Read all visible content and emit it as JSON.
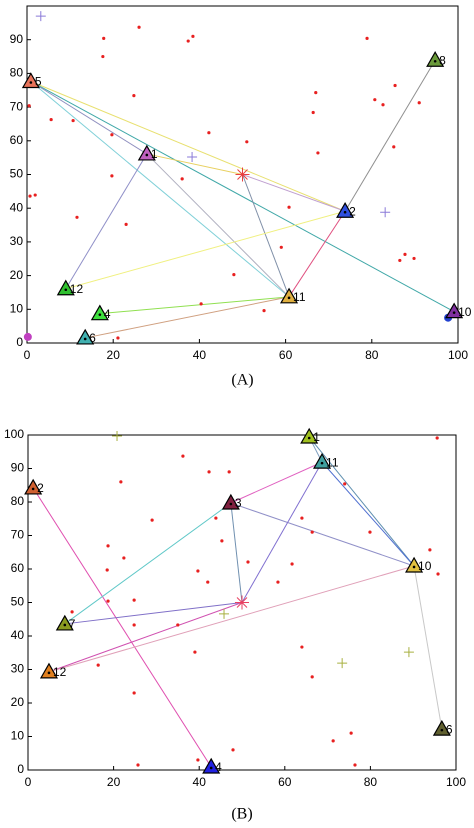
{
  "chart_data": [
    {
      "type": "scatter",
      "label": "(A)",
      "xlim": [
        0,
        100
      ],
      "ylim": [
        0,
        100
      ],
      "xticks": [
        0,
        20,
        40,
        60,
        80,
        100
      ],
      "yticks": [
        0,
        10,
        20,
        30,
        40,
        50,
        60,
        70,
        80,
        90
      ],
      "series": [
        {
          "marker": "dot",
          "color": "#e82020",
          "x": [
            17.8,
            26,
            37.4,
            38.5,
            17.6,
            78.9,
            24.8,
            5.6,
            10.7,
            19.7,
            42.2,
            51,
            67,
            66.4,
            80.7,
            82.6,
            91,
            85.4,
            85.1,
            67.5,
            19.7,
            36,
            0.7,
            1.9,
            60.8,
            11.6,
            23,
            59,
            48,
            87.7,
            89.8,
            86.5,
            0.5,
            40.4,
            55,
            21.1
          ],
          "y": [
            90.4,
            93.7,
            89.6,
            91,
            85,
            90.4,
            73.4,
            66.3,
            66,
            61.8,
            62.4,
            59.7,
            74.3,
            68.4,
            72.2,
            70.7,
            71.3,
            76.4,
            58.2,
            56.4,
            49.6,
            48.7,
            43.6,
            43.9,
            40.3,
            37.3,
            35.2,
            28.4,
            20.3,
            26.3,
            25.1,
            24.5,
            70.4,
            11.6,
            9.6,
            1.5
          ]
        },
        {
          "marker": "plus",
          "color": "#8a7ad8",
          "x": [
            3.2,
            38.3,
            83.1
          ],
          "y": [
            97,
            55.2,
            38.8
          ]
        },
        {
          "marker": "star",
          "color": "#e84040",
          "x": [
            50
          ],
          "y": [
            50
          ]
        },
        {
          "marker": "circle",
          "color": "#c040c0",
          "x": [
            0.2
          ],
          "y": [
            1.8
          ]
        },
        {
          "marker": "circle",
          "color": "#2040d0",
          "x": [
            97.7
          ],
          "y": [
            7.5
          ]
        }
      ],
      "links": [
        {
          "color": "#e8e070",
          "x": [
            0.9,
            73.8
          ],
          "y": [
            77.6,
            39.1
          ]
        },
        {
          "color": "#80d0d8",
          "x": [
            0.9,
            60.8
          ],
          "y": [
            77.6,
            13.7
          ]
        },
        {
          "color": "#40a8a8",
          "x": [
            0.9,
            99.1
          ],
          "y": [
            77.6,
            9.3
          ]
        },
        {
          "color": "#9090c0",
          "x": [
            0.9,
            27.8
          ],
          "y": [
            77.6,
            56.1
          ]
        },
        {
          "color": "#9090c8",
          "x": [
            27.8,
            9.0
          ],
          "y": [
            56.1,
            16.1
          ]
        },
        {
          "color": "#b0b0c0",
          "x": [
            27.8,
            60.8
          ],
          "y": [
            56.1,
            13.7
          ]
        },
        {
          "color": "#e8d060",
          "x": [
            27.8,
            50
          ],
          "y": [
            56.1,
            50
          ]
        },
        {
          "color": "#c0a0d0",
          "x": [
            50,
            73.8
          ],
          "y": [
            50,
            39.1
          ]
        },
        {
          "color": "#8090a8",
          "x": [
            50,
            60.8
          ],
          "y": [
            50,
            13.7
          ]
        },
        {
          "color": "#f0f080",
          "x": [
            9.0,
            73.8
          ],
          "y": [
            16.1,
            39.1
          ]
        },
        {
          "color": "#90e050",
          "x": [
            16.9,
            60.8
          ],
          "y": [
            8.7,
            13.7
          ]
        },
        {
          "color": "#d0a080",
          "x": [
            13.5,
            60.8
          ],
          "y": [
            1.5,
            13.7
          ]
        },
        {
          "color": "#e05080",
          "x": [
            73.8,
            60.8
          ],
          "y": [
            39.1,
            13.7
          ]
        },
        {
          "color": "#909090",
          "x": [
            94.7,
            73.8
          ],
          "y": [
            83.9,
            39.1
          ]
        }
      ],
      "nodes": {
        "labels": [
          "5",
          "1",
          "8",
          "2",
          "12",
          "4",
          "11",
          "6",
          "10"
        ],
        "colors": [
          "#e8735a",
          "#c060c0",
          "#6a9a3a",
          "#3050e0",
          "#30c030",
          "#40e040",
          "#e0b040",
          "#40b0b0",
          "#8030a0"
        ],
        "x": [
          0.9,
          27.8,
          94.7,
          73.8,
          9.0,
          16.9,
          60.8,
          13.5,
          99.1
        ],
        "y": [
          77.6,
          56.1,
          83.9,
          39.1,
          16.1,
          8.7,
          13.7,
          1.5,
          9.3
        ]
      }
    },
    {
      "type": "scatter",
      "label": "(B)",
      "xlim": [
        0,
        100
      ],
      "ylim": [
        0,
        100
      ],
      "xticks": [
        0,
        20,
        40,
        60,
        80,
        100
      ],
      "yticks": [
        0,
        10,
        20,
        30,
        40,
        50,
        60,
        70,
        80,
        90,
        100
      ],
      "series": [
        {
          "marker": "dot",
          "color": "#e82020",
          "x": [
            36.2,
            21.7,
            42.3,
            47,
            29,
            18.7,
            43.9,
            22.4,
            18.5,
            45.3,
            51.4,
            39.7,
            42,
            58.4,
            61.7,
            64,
            66.4,
            79.9,
            93.9,
            95.8,
            95.6,
            74,
            10.3,
            18.7,
            24.8,
            35,
            24.8,
            39,
            16.4,
            64,
            66.4,
            24.8,
            71.3,
            75.5,
            47.9,
            39.7,
            25.7,
            76.4
          ],
          "y": [
            93.7,
            86,
            89,
            89,
            74.6,
            66.9,
            75.2,
            63.3,
            59.7,
            68.4,
            62.1,
            59.4,
            56.1,
            56.1,
            61.5,
            75.2,
            71,
            71,
            65.7,
            58.5,
            99.1,
            85.4,
            47.2,
            50.4,
            50.7,
            43.3,
            43.3,
            35.2,
            31.3,
            36.7,
            27.8,
            23,
            8.7,
            11,
            6,
            3,
            1.5,
            1.5
          ]
        },
        {
          "marker": "plus",
          "color": "#a8b040",
          "x": [
            20.8,
            45.8,
            73.4,
            89
          ],
          "y": [
            99.7,
            46.6,
            31.9,
            35.2
          ]
        },
        {
          "marker": "star",
          "color": "#e84060",
          "x": [
            50
          ],
          "y": [
            50
          ]
        }
      ],
      "links": [
        {
          "color": "#e050b0",
          "x": [
            1.2,
            42.8
          ],
          "y": [
            84.2,
            0.9
          ]
        },
        {
          "color": "#60c8c8",
          "x": [
            8.6,
            47.4
          ],
          "y": [
            43.6,
            79.7
          ]
        },
        {
          "color": "#e060c0",
          "x": [
            47.4,
            68.7
          ],
          "y": [
            79.7,
            91.9
          ]
        },
        {
          "color": "#9090c8",
          "x": [
            47.4,
            90.2
          ],
          "y": [
            79.7,
            60.9
          ]
        },
        {
          "color": "#7090b0",
          "x": [
            47.4,
            50
          ],
          "y": [
            79.7,
            50
          ]
        },
        {
          "color": "#8070d0",
          "x": [
            68.7,
            50
          ],
          "y": [
            91.9,
            50
          ]
        },
        {
          "color": "#80a0c0",
          "x": [
            65.7,
            68.7
          ],
          "y": [
            99.4,
            91.9
          ]
        },
        {
          "color": "#6090b0",
          "x": [
            65.7,
            90.2
          ],
          "y": [
            99.4,
            60.9
          ]
        },
        {
          "color": "#5070d0",
          "x": [
            68.7,
            90.2
          ],
          "y": [
            91.9,
            60.9
          ]
        },
        {
          "color": "#8070c8",
          "x": [
            8.6,
            50
          ],
          "y": [
            43.6,
            50
          ]
        },
        {
          "color": "#d050b0",
          "x": [
            4.9,
            50
          ],
          "y": [
            29.3,
            50
          ]
        },
        {
          "color": "#e0a0b8",
          "x": [
            4.9,
            90.2
          ],
          "y": [
            29.3,
            60.9
          ]
        },
        {
          "color": "#c8c8c8",
          "x": [
            90.2,
            96.7
          ],
          "y": [
            60.9,
            12.2
          ]
        }
      ],
      "nodes": {
        "labels": [
          "1",
          "11",
          "2",
          "3",
          "10",
          "7",
          "12",
          "6",
          "4"
        ],
        "colors": [
          "#a0c020",
          "#40a0a0",
          "#d06030",
          "#802040",
          "#e0c040",
          "#8a9a20",
          "#e08020",
          "#606030",
          "#2020e0"
        ],
        "x": [
          65.7,
          68.7,
          1.2,
          47.4,
          90.2,
          8.6,
          4.9,
          96.7,
          42.8
        ],
        "y": [
          99.4,
          91.9,
          84.2,
          79.7,
          60.9,
          43.6,
          29.3,
          12.2,
          0.9
        ]
      }
    }
  ]
}
